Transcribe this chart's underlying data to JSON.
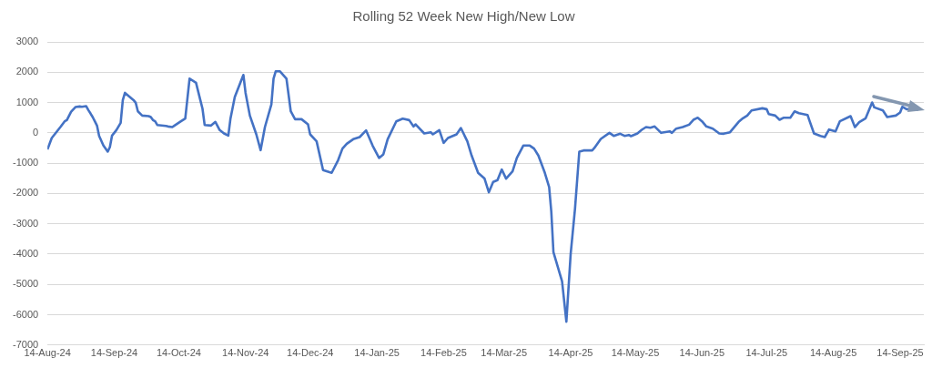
{
  "chart_data": {
    "type": "line",
    "title": "Rolling 52 Week New High/New Low",
    "x": [
      "2024-08-14",
      "2024-08-16",
      "2024-08-20",
      "2024-08-22",
      "2024-08-23",
      "2024-08-25",
      "2024-08-27",
      "2024-08-29",
      "2024-08-30",
      "2024-09-01",
      "2024-09-02",
      "2024-09-03",
      "2024-09-04",
      "2024-09-05",
      "2024-09-06",
      "2024-09-07",
      "2024-09-09",
      "2024-09-11",
      "2024-09-12",
      "2024-09-13",
      "2024-09-15",
      "2024-09-17",
      "2024-09-18",
      "2024-09-19",
      "2024-09-21",
      "2024-09-23",
      "2024-09-24",
      "2024-09-25",
      "2024-09-27",
      "2024-09-30",
      "2024-10-01",
      "2024-10-02",
      "2024-10-03",
      "2024-10-04",
      "2024-10-08",
      "2024-10-09",
      "2024-10-11",
      "2024-10-12",
      "2024-10-15",
      "2024-10-17",
      "2024-10-19",
      "2024-10-22",
      "2024-10-24",
      "2024-10-25",
      "2024-10-26",
      "2024-10-29",
      "2024-10-31",
      "2024-11-02",
      "2024-11-04",
      "2024-11-06",
      "2024-11-07",
      "2024-11-09",
      "2024-11-13",
      "2024-11-14",
      "2024-11-16",
      "2024-11-19",
      "2024-11-21",
      "2024-11-23",
      "2024-11-26",
      "2024-11-27",
      "2024-11-28",
      "2024-11-30",
      "2024-12-03",
      "2024-12-05",
      "2024-12-07",
      "2024-12-10",
      "2024-12-13",
      "2024-12-14",
      "2024-12-17",
      "2024-12-20",
      "2024-12-23",
      "2024-12-24",
      "2024-12-27",
      "2024-12-29",
      "2024-12-31",
      "2025-01-03",
      "2025-01-06",
      "2025-01-09",
      "2025-01-12",
      "2025-01-15",
      "2025-01-17",
      "2025-01-19",
      "2025-01-23",
      "2025-01-26",
      "2025-01-29",
      "2025-01-31",
      "2025-02-01",
      "2025-02-05",
      "2025-02-08",
      "2025-02-09",
      "2025-02-12",
      "2025-02-14",
      "2025-02-16",
      "2025-02-20",
      "2025-02-22",
      "2025-02-25",
      "2025-02-27",
      "2025-03-02",
      "2025-03-05",
      "2025-03-07",
      "2025-03-09",
      "2025-03-11",
      "2025-03-13",
      "2025-03-15",
      "2025-03-18",
      "2025-03-20",
      "2025-03-23",
      "2025-03-26",
      "2025-03-28",
      "2025-03-30",
      "2025-04-02",
      "2025-04-04",
      "2025-04-05",
      "2025-04-06",
      "2025-04-10",
      "2025-04-12",
      "2025-04-14",
      "2025-04-16",
      "2025-04-18",
      "2025-04-20",
      "2025-04-24",
      "2025-04-25",
      "2025-04-28",
      "2025-05-02",
      "2025-05-04",
      "2025-05-07",
      "2025-05-09",
      "2025-05-11",
      "2025-05-12",
      "2025-05-15",
      "2025-05-17",
      "2025-05-19",
      "2025-05-21",
      "2025-05-23",
      "2025-05-26",
      "2025-05-30",
      "2025-05-31",
      "2025-06-02",
      "2025-06-05",
      "2025-06-08",
      "2025-06-10",
      "2025-06-12",
      "2025-06-14",
      "2025-06-16",
      "2025-06-19",
      "2025-06-22",
      "2025-06-24",
      "2025-06-27",
      "2025-07-01",
      "2025-07-03",
      "2025-07-05",
      "2025-07-07",
      "2025-07-12",
      "2025-07-14",
      "2025-07-15",
      "2025-07-18",
      "2025-07-20",
      "2025-07-22",
      "2025-07-25",
      "2025-07-27",
      "2025-07-29",
      "2025-08-02",
      "2025-08-03",
      "2025-08-05",
      "2025-08-08",
      "2025-08-10",
      "2025-08-12",
      "2025-08-15",
      "2025-08-17",
      "2025-08-22",
      "2025-08-24",
      "2025-08-26",
      "2025-08-29",
      "2025-09-01",
      "2025-09-02",
      "2025-09-06",
      "2025-09-08",
      "2025-09-12",
      "2025-09-14",
      "2025-09-15",
      "2025-09-17",
      "2025-09-20",
      "2025-09-21",
      "2025-09-22",
      "2025-09-23"
    ],
    "series": [
      {
        "color": "#4472c4",
        "values": [
          -550,
          -170,
          190,
          380,
          420,
          700,
          850,
          870,
          860,
          880,
          750,
          640,
          520,
          380,
          240,
          -100,
          -420,
          -620,
          -470,
          -90,
          90,
          330,
          1080,
          1320,
          1200,
          1080,
          990,
          710,
          570,
          550,
          520,
          420,
          380,
          260,
          230,
          210,
          190,
          240,
          380,
          470,
          1790,
          1650,
          1080,
          800,
          260,
          240,
          360,
          90,
          -20,
          -90,
          470,
          1180,
          1910,
          1320,
          570,
          -50,
          -570,
          190,
          940,
          1790,
          2030,
          2030,
          1790,
          710,
          450,
          450,
          280,
          -50,
          -280,
          -1230,
          -1300,
          -1320,
          -900,
          -520,
          -360,
          -210,
          -140,
          80,
          -420,
          -830,
          -710,
          -210,
          380,
          470,
          420,
          210,
          280,
          -20,
          20,
          -50,
          90,
          -330,
          -170,
          -50,
          160,
          -280,
          -750,
          -1320,
          -1510,
          -1960,
          -1620,
          -1560,
          -1210,
          -1510,
          -1270,
          -830,
          -420,
          -420,
          -520,
          -750,
          -1320,
          -1790,
          -2600,
          -3940,
          -4900,
          -6230,
          -3990,
          -2510,
          -620,
          -580,
          -580,
          -500,
          -200,
          0,
          -100,
          -30,
          -100,
          -70,
          -110,
          -20,
          100,
          190,
          170,
          210,
          0,
          50,
          0,
          140,
          190,
          270,
          430,
          500,
          380,
          210,
          140,
          -20,
          -30,
          20,
          360,
          480,
          570,
          740,
          810,
          780,
          620,
          570,
          430,
          500,
          500,
          710,
          650,
          590,
          380,
          -20,
          -100,
          -140,
          110,
          50,
          380,
          550,
          190,
          350,
          480,
          1000,
          840,
          740,
          520,
          570,
          670,
          860,
          780,
          780,
          860,
          760,
          810
        ]
      }
    ],
    "xlim": [
      "2024-08-14",
      "2025-09-25"
    ],
    "xticks": [
      {
        "value": "2024-08-14",
        "label": "14-Aug-24"
      },
      {
        "value": "2024-09-14",
        "label": "14-Sep-24"
      },
      {
        "value": "2024-10-14",
        "label": "14-Oct-24"
      },
      {
        "value": "2024-11-14",
        "label": "14-Nov-24"
      },
      {
        "value": "2024-12-14",
        "label": "14-Dec-24"
      },
      {
        "value": "2025-01-14",
        "label": "14-Jan-25"
      },
      {
        "value": "2025-02-14",
        "label": "14-Feb-25"
      },
      {
        "value": "2025-03-14",
        "label": "14-Mar-25"
      },
      {
        "value": "2025-04-14",
        "label": "14-Apr-25"
      },
      {
        "value": "2025-05-14",
        "label": "14-May-25"
      },
      {
        "value": "2025-06-14",
        "label": "14-Jun-25"
      },
      {
        "value": "2025-07-14",
        "label": "14-Jul-25"
      },
      {
        "value": "2025-08-14",
        "label": "14-Aug-25"
      },
      {
        "value": "2025-09-14",
        "label": "14-Sep-25"
      }
    ],
    "ylim": [
      -7000,
      3000
    ],
    "yticks": [
      -7000,
      -6000,
      -5000,
      -4000,
      -3000,
      -2000,
      -1000,
      0,
      1000,
      2000,
      3000
    ],
    "grid": "y",
    "marker": "none",
    "line_style": "solid"
  }
}
